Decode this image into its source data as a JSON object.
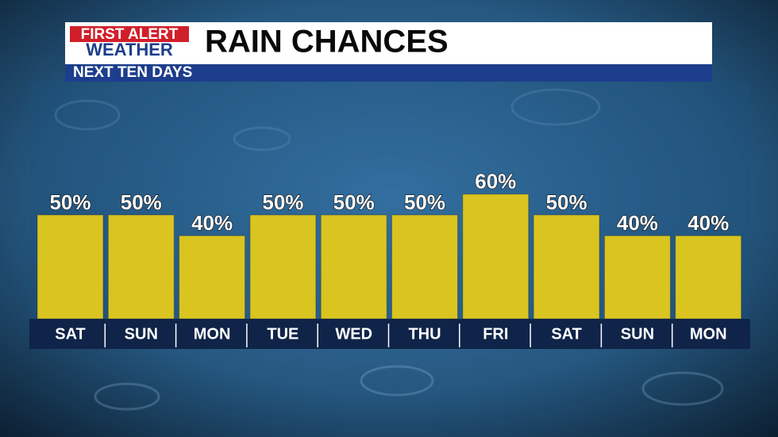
{
  "brand": {
    "line1": "FIRST ALERT",
    "line2": "WEATHER"
  },
  "chart_data": {
    "type": "bar",
    "title": "RAIN CHANCES",
    "subtitle": "NEXT TEN DAYS",
    "categories": [
      "SAT",
      "SUN",
      "MON",
      "TUE",
      "WED",
      "THU",
      "FRI",
      "SAT",
      "SUN",
      "MON"
    ],
    "values": [
      50,
      50,
      40,
      50,
      50,
      50,
      60,
      50,
      40,
      40
    ],
    "value_labels": [
      "50%",
      "50%",
      "40%",
      "50%",
      "50%",
      "50%",
      "60%",
      "50%",
      "40%",
      "40%"
    ],
    "color": "#d9c420"
  }
}
